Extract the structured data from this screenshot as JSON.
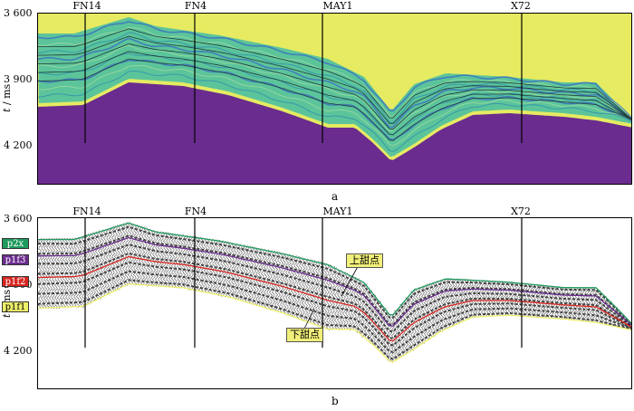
{
  "wells": [
    "FN14",
    "FN4",
    "MAY1",
    "X72"
  ],
  "y_axis": {
    "title_var": "t",
    "title_unit": " / ms",
    "ticks": [
      "3 600",
      "3 900",
      "4 200"
    ]
  },
  "panel_a": {
    "caption": "a"
  },
  "panel_b": {
    "caption": "b",
    "horizons": [
      {
        "label": "p2x",
        "color": "#1f9b5e"
      },
      {
        "label": "p1f3",
        "color": "#6a2c8e"
      },
      {
        "label": "p1f2",
        "color": "#d8241f"
      },
      {
        "label": "p1f1",
        "color": "#eef06a"
      }
    ],
    "callouts": {
      "upper": "上甜点",
      "lower": "下甜点"
    }
  },
  "colors": {
    "background_yellow": "#e6eb62",
    "basement_purple": "#6a2c8e",
    "seismic_green": "#5cc49a",
    "seismic_blue": "#3a6fc0"
  }
}
